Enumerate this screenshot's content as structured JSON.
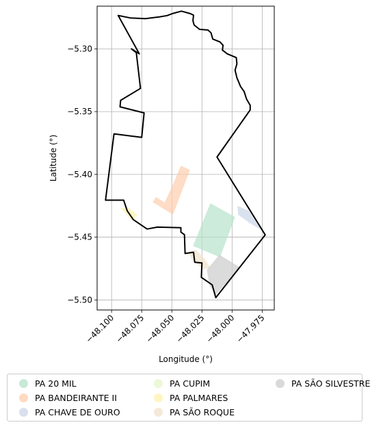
{
  "chart_data": {
    "type": "map",
    "title": "",
    "xlabel": "Longitude (°)",
    "ylabel": "Latitude (°)",
    "xlim": [
      -48.112,
      -47.965
    ],
    "ylim": [
      -5.508,
      -5.266
    ],
    "xticks": [
      -48.1,
      -48.075,
      -48.05,
      -48.025,
      -48.0,
      -47.975
    ],
    "xtick_labels": [
      "−48.100",
      "−48.075",
      "−48.050",
      "−48.025",
      "−48.000",
      "−47.975"
    ],
    "yticks": [
      -5.3,
      -5.35,
      -5.4,
      -5.45,
      -5.5
    ],
    "ytick_labels": [
      "−5.30",
      "−5.35",
      "−5.40",
      "−5.45",
      "−5.50"
    ],
    "grid": true,
    "legend_position": "below",
    "boundary": {
      "color": "#000000",
      "coords": [
        [
          -48.0945,
          -5.2734
        ],
        [
          -48.0845,
          -5.2754
        ],
        [
          -48.072,
          -5.276
        ],
        [
          -48.06,
          -5.2745
        ],
        [
          -48.054,
          -5.2735
        ],
        [
          -48.049,
          -5.2718
        ],
        [
          -48.042,
          -5.27
        ],
        [
          -48.0375,
          -5.2712
        ],
        [
          -48.0345,
          -5.272
        ],
        [
          -48.032,
          -5.2732
        ],
        [
          -48.0325,
          -5.2775
        ],
        [
          -48.0315,
          -5.281
        ],
        [
          -48.027,
          -5.2845
        ],
        [
          -48.02,
          -5.285
        ],
        [
          -48.0175,
          -5.2872
        ],
        [
          -48.016,
          -5.2922
        ],
        [
          -48.01,
          -5.2945
        ],
        [
          -48.0075,
          -5.2972
        ],
        [
          -48.008,
          -5.301
        ],
        [
          -48.004,
          -5.304
        ],
        [
          -47.9965,
          -5.307
        ],
        [
          -47.996,
          -5.312
        ],
        [
          -47.9975,
          -5.317
        ],
        [
          -47.996,
          -5.323
        ],
        [
          -47.993,
          -5.33
        ],
        [
          -47.99,
          -5.334
        ],
        [
          -47.988,
          -5.34
        ],
        [
          -47.985,
          -5.345
        ],
        [
          -47.985,
          -5.3487
        ],
        [
          -48.0125,
          -5.3862
        ],
        [
          -47.9725,
          -5.4482
        ],
        [
          -48.0135,
          -5.4982
        ],
        [
          -48.0165,
          -5.488
        ],
        [
          -48.0255,
          -5.482
        ],
        [
          -48.025,
          -5.4705
        ],
        [
          -48.031,
          -5.47
        ],
        [
          -48.032,
          -5.462
        ],
        [
          -48.039,
          -5.463
        ],
        [
          -48.0395,
          -5.448
        ],
        [
          -48.0425,
          -5.446
        ],
        [
          -48.0425,
          -5.4425
        ],
        [
          -48.062,
          -5.442
        ],
        [
          -48.0705,
          -5.4435
        ],
        [
          -48.082,
          -5.436
        ],
        [
          -48.087,
          -5.429
        ],
        [
          -48.09,
          -5.4205
        ],
        [
          -48.105,
          -5.4205
        ],
        [
          -48.098,
          -5.3677
        ],
        [
          -48.075,
          -5.3705
        ],
        [
          -48.073,
          -5.351
        ],
        [
          -48.093,
          -5.3462
        ],
        [
          -48.0925,
          -5.341
        ],
        [
          -48.076,
          -5.3315
        ],
        [
          -48.0795,
          -5.303
        ],
        [
          -48.0835,
          -5.3
        ],
        [
          -48.077,
          -5.304
        ]
      ]
    },
    "series": [
      {
        "name": "PA 20 MIL",
        "color": "#b6e2cb",
        "coords": [
          [
            -48.018,
            -5.423
          ],
          [
            -47.9975,
            -5.434
          ],
          [
            -48.01,
            -5.466
          ],
          [
            -48.0325,
            -5.457
          ]
        ]
      },
      {
        "name": "PA BANDEIRANTE II",
        "color": "#fdcdac",
        "coords": [
          [
            -48.0425,
            -5.393
          ],
          [
            -48.035,
            -5.3965
          ],
          [
            -48.049,
            -5.432
          ],
          [
            -48.066,
            -5.422
          ],
          [
            -48.063,
            -5.418
          ],
          [
            -48.056,
            -5.4225
          ],
          [
            -48.049,
            -5.408
          ]
        ]
      },
      {
        "name": "PA CHAVE DE OURO",
        "color": "#cbd5e8",
        "coords": [
          [
            -47.9955,
            -5.425
          ],
          [
            -47.986,
            -5.429
          ],
          [
            -47.976,
            -5.444
          ],
          [
            -47.985,
            -5.439
          ],
          [
            -47.995,
            -5.432
          ]
        ]
      },
      {
        "name": "PA CUPIM",
        "color": "#e6f5c9",
        "coords": []
      },
      {
        "name": "PA PALMARES",
        "color": "#fff2ae",
        "coords": [
          [
            -48.092,
            -5.427
          ],
          [
            -48.087,
            -5.426
          ],
          [
            -48.0785,
            -5.432
          ],
          [
            -48.083,
            -5.437
          ]
        ]
      },
      {
        "name": "PA SÃO ROQUE",
        "color": "#f1e2cc",
        "coords": [
          [
            -48.03,
            -5.46
          ],
          [
            -48.023,
            -5.467
          ],
          [
            -48.018,
            -5.474
          ],
          [
            -48.0235,
            -5.476
          ],
          [
            -48.033,
            -5.468
          ],
          [
            -48.0365,
            -5.462
          ]
        ]
      },
      {
        "name": "PA SÃO SILVESTRE",
        "color": "#cccccc",
        "coords": [
          [
            -48.0105,
            -5.464
          ],
          [
            -47.9935,
            -5.474
          ],
          [
            -47.9985,
            -5.4795
          ],
          [
            -48.0135,
            -5.496
          ],
          [
            -48.0185,
            -5.489
          ],
          [
            -48.021,
            -5.476
          ]
        ]
      }
    ]
  }
}
